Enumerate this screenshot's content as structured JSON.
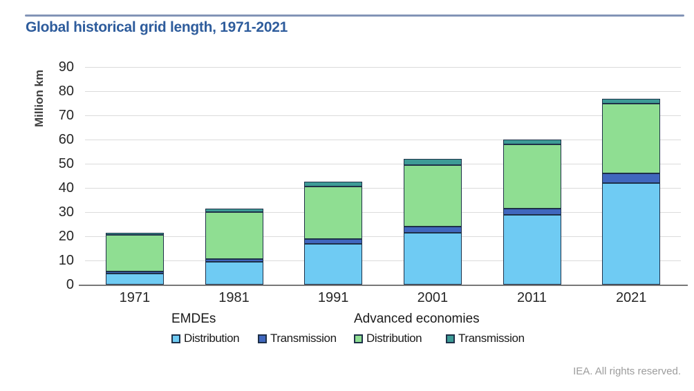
{
  "header": {
    "title": "Global historical grid length, 1971-2021"
  },
  "footer": {
    "credit": "IEA. All rights reserved."
  },
  "colors": {
    "title_blue": "#2e5c9c",
    "top_rule": "#8294b6",
    "bar_border": "#1e3048",
    "gridline": "#dbdbdb",
    "baseline": "#787878",
    "emde_distribution": "#6fcbf3",
    "emde_transmission": "#4067be",
    "advanced_distribution": "#8fde92",
    "advanced_transmission": "#3d9b96"
  },
  "chart_data": {
    "type": "bar",
    "stacked": true,
    "title": "Global historical grid length, 1971-2021",
    "xlabel": "",
    "ylabel": "Million km",
    "ylim": [
      0,
      90
    ],
    "ytick_step": 10,
    "grid": true,
    "legend_position": "bottom",
    "categories": [
      "1971",
      "1981",
      "1991",
      "2001",
      "2011",
      "2021"
    ],
    "legend_groups": [
      "EMDEs",
      "Advanced economies"
    ],
    "series": [
      {
        "name": "EMDEs Distribution",
        "group": "EMDEs",
        "label": "Distribution",
        "color": "#6fcbf3",
        "values": [
          4.5,
          9.5,
          17,
          21.5,
          29,
          42
        ]
      },
      {
        "name": "EMDEs Transmission",
        "group": "EMDEs",
        "label": "Transmission",
        "color": "#4067be",
        "values": [
          1,
          1,
          2,
          2.5,
          2.5,
          4
        ]
      },
      {
        "name": "Advanced economies Distribution",
        "group": "Advanced economies",
        "label": "Distribution",
        "color": "#8fde92",
        "values": [
          15,
          19.5,
          21.5,
          25.5,
          26.5,
          29
        ]
      },
      {
        "name": "Advanced economies Transmission",
        "group": "Advanced economies",
        "label": "Transmission",
        "color": "#3d9b96",
        "values": [
          1,
          1.5,
          2,
          2.5,
          2,
          2
        ]
      }
    ],
    "totals": [
      21.5,
      31.5,
      42.5,
      52,
      60,
      77
    ]
  }
}
